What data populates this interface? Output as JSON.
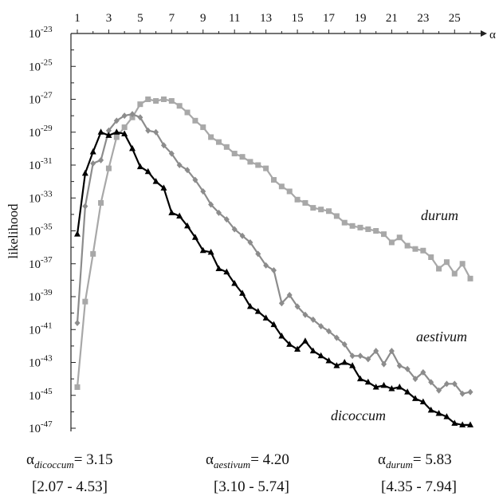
{
  "chart_data": {
    "type": "line",
    "ylabel": "likelihood",
    "xlabel_symbol": "α",
    "x_tick_labels": [
      "1",
      "3",
      "5",
      "7",
      "9",
      "11",
      "13",
      "15",
      "17",
      "19",
      "21",
      "23",
      "25"
    ],
    "y_tick_exponents": [
      "-23",
      "-25",
      "-27",
      "-29",
      "-31",
      "-33",
      "-35",
      "-37",
      "-39",
      "-41",
      "-43",
      "-45",
      "-47"
    ],
    "y_tick_base": "10",
    "xlim": [
      1,
      26
    ],
    "ylim_log10": [
      -47,
      -23
    ],
    "y_scale": "log",
    "grid": false,
    "x": [
      1,
      1.5,
      2,
      2.5,
      3,
      3.5,
      4,
      4.5,
      5,
      5.5,
      6,
      6.5,
      7,
      7.5,
      8,
      8.5,
      9,
      9.5,
      10,
      10.5,
      11,
      11.5,
      12,
      12.5,
      13,
      13.5,
      14,
      14.5,
      15,
      15.5,
      16,
      16.5,
      17,
      17.5,
      18,
      18.5,
      19,
      19.5,
      20,
      20.5,
      21,
      21.5,
      22,
      22.5,
      23,
      23.5,
      24,
      24.5,
      25,
      25.5,
      26
    ],
    "series": [
      {
        "name": "durum",
        "color": "#a8a8a8",
        "marker": "square",
        "log10_values": [
          -44.5,
          -39.3,
          -36.4,
          -33.3,
          -31.2,
          -29.3,
          -28.7,
          -28.1,
          -27.3,
          -27.0,
          -27.1,
          -27.0,
          -27.1,
          -27.4,
          -27.8,
          -28.3,
          -28.7,
          -29.3,
          -29.6,
          -29.9,
          -30.3,
          -30.5,
          -30.8,
          -31.0,
          -31.2,
          -31.9,
          -32.3,
          -32.6,
          -33.1,
          -33.3,
          -33.6,
          -33.7,
          -33.8,
          -34.1,
          -34.5,
          -34.7,
          -34.8,
          -34.9,
          -35.0,
          -35.2,
          -35.7,
          -35.4,
          -35.9,
          -36.1,
          -36.2,
          -36.6,
          -37.3,
          -36.9,
          -37.6,
          -37.0,
          -37.9
        ]
      },
      {
        "name": "aestivum",
        "color": "#8c8c8c",
        "marker": "diamond",
        "log10_values": [
          -40.6,
          -33.5,
          -30.9,
          -30.7,
          -28.9,
          -28.3,
          -28.0,
          -27.9,
          -28.1,
          -28.9,
          -29.0,
          -29.8,
          -30.3,
          -31.0,
          -31.3,
          -31.9,
          -32.6,
          -33.4,
          -33.9,
          -34.3,
          -34.9,
          -35.3,
          -35.7,
          -36.4,
          -37.1,
          -37.4,
          -39.4,
          -38.9,
          -39.6,
          -40.1,
          -40.4,
          -40.8,
          -41.1,
          -41.5,
          -41.9,
          -42.6,
          -42.6,
          -42.8,
          -42.3,
          -43.1,
          -42.3,
          -43.2,
          -43.4,
          -44.0,
          -43.6,
          -44.2,
          -44.7,
          -44.3,
          -44.3,
          -44.9,
          -44.8
        ]
      },
      {
        "name": "dicoccum",
        "color": "#000000",
        "marker": "triangle",
        "log10_values": [
          -35.2,
          -31.5,
          -30.2,
          -29.0,
          -29.2,
          -29.0,
          -29.1,
          -30.0,
          -31.1,
          -31.4,
          -32.0,
          -32.4,
          -33.9,
          -34.1,
          -34.7,
          -35.4,
          -36.2,
          -36.3,
          -37.3,
          -37.5,
          -38.2,
          -38.8,
          -39.6,
          -39.9,
          -40.3,
          -40.7,
          -41.4,
          -41.9,
          -42.2,
          -41.7,
          -42.3,
          -42.6,
          -42.9,
          -43.2,
          -43.0,
          -43.2,
          -44.0,
          -44.2,
          -44.5,
          -44.4,
          -44.6,
          -44.5,
          -44.8,
          -45.2,
          -45.4,
          -45.9,
          -46.1,
          -46.3,
          -46.7,
          -46.8,
          -46.8
        ]
      }
    ],
    "estimates": [
      {
        "symbol": "α",
        "sub": "dicoccum",
        "value": "= 3.15",
        "ci": "[2.07 - 4.53]"
      },
      {
        "symbol": "α",
        "sub": "aestivum",
        "value": "= 4.20",
        "ci": "[3.10 - 5.74]"
      },
      {
        "symbol": "α",
        "sub": "durum",
        "value": "= 5.83",
        "ci": "[4.35 - 7.94]"
      }
    ]
  }
}
